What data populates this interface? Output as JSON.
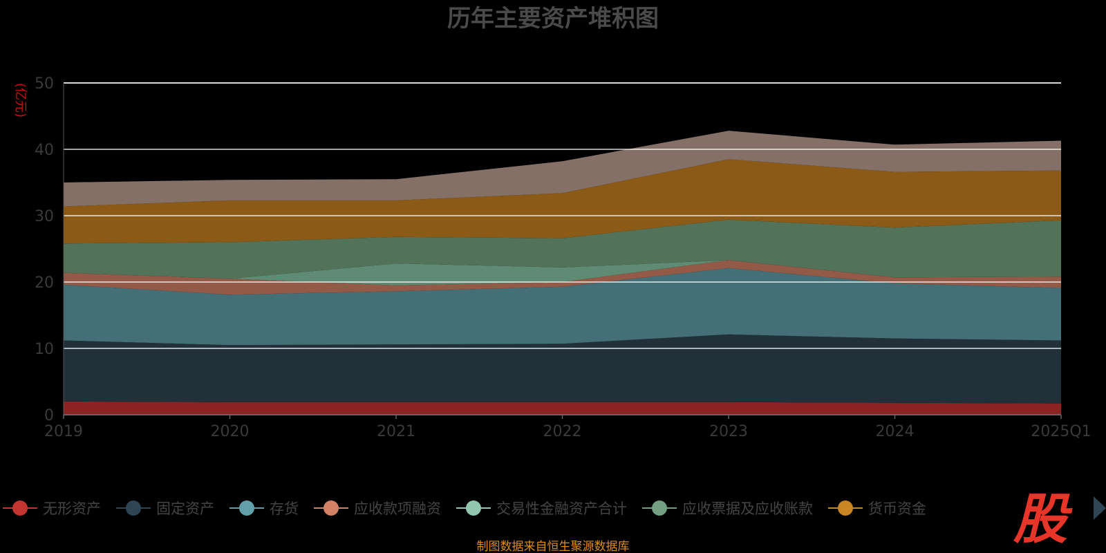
{
  "chart_data": {
    "type": "area",
    "stacked": true,
    "title": "历年主要资产堆积图",
    "ylabel": "(亿元)",
    "ylim": [
      0,
      50
    ],
    "yticks": [
      0,
      10,
      20,
      30,
      40,
      50
    ],
    "grid": true,
    "categories": [
      "2019",
      "2020",
      "2021",
      "2022",
      "2023",
      "2024",
      "2025Q1"
    ],
    "series": [
      {
        "name": "无形资产",
        "color": "#8b2323",
        "legend_color": "#c23531",
        "values": [
          2.0,
          1.9,
          1.9,
          1.9,
          1.9,
          1.8,
          1.7
        ]
      },
      {
        "name": "固定资产",
        "color": "#213039",
        "legend_color": "#2f4554",
        "values": [
          9.2,
          8.6,
          8.7,
          8.8,
          10.2,
          9.7,
          9.5
        ]
      },
      {
        "name": "存货",
        "color": "#456f77",
        "legend_color": "#61a0a8",
        "values": [
          8.4,
          7.6,
          8.0,
          8.6,
          10.0,
          8.3,
          7.9
        ]
      },
      {
        "name": "应收款项融资",
        "color": "#935a48",
        "legend_color": "#d48265",
        "values": [
          1.8,
          2.4,
          0.9,
          0.7,
          1.2,
          0.9,
          1.7
        ]
      },
      {
        "name": "交易性金融资产合计",
        "color": "#5f8a73",
        "legend_color": "#91c7ae",
        "values": [
          0.0,
          0.0,
          3.3,
          2.2,
          0.0,
          0.0,
          0.0
        ]
      },
      {
        "name": "应收票据及应收账款",
        "color": "#527259",
        "legend_color": "#749f83",
        "values": [
          4.4,
          5.5,
          4.0,
          4.4,
          6.1,
          7.5,
          8.5
        ]
      },
      {
        "name": "货币资金",
        "color": "#8b5a17",
        "legend_color": "#ca8622",
        "values": [
          5.6,
          6.3,
          5.5,
          6.8,
          9.1,
          8.4,
          7.5
        ]
      },
      {
        "name": "",
        "color": "#857067",
        "legend_color": "#bda29a",
        "values": [
          3.6,
          3.1,
          3.2,
          4.8,
          4.3,
          4.1,
          4.5
        ]
      }
    ]
  },
  "source_text": "制图数据来自恒生聚源数据库",
  "logo_text": "股",
  "legend_more_icon": "triangle-right-icon"
}
